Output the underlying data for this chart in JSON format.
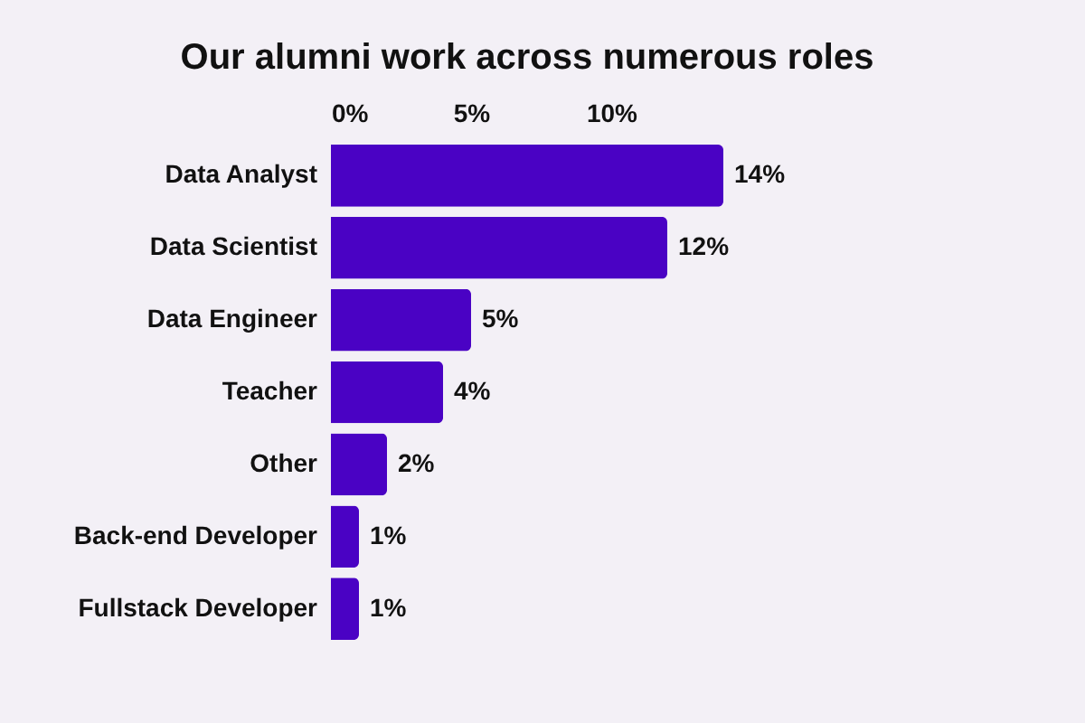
{
  "chart_data": {
    "type": "bar",
    "orientation": "horizontal",
    "title": "Our alumni work across numerous roles",
    "categories": [
      "Data Analyst",
      "Data Scientist",
      "Data Engineer",
      "Teacher",
      "Other",
      "Back-end Developer",
      "Fullstack Developer"
    ],
    "values": [
      14,
      12,
      5,
      4,
      2,
      1,
      1
    ],
    "value_labels": [
      "14%",
      "12%",
      "5%",
      "4%",
      "2%",
      "1%",
      "1%"
    ],
    "color": "#4a02c4",
    "xlim": [
      0,
      14
    ],
    "xticks": [
      {
        "value": 0,
        "label": "0%"
      },
      {
        "value": 5,
        "label": "5%"
      },
      {
        "value": 10,
        "label": "10%"
      }
    ],
    "grid": false
  }
}
